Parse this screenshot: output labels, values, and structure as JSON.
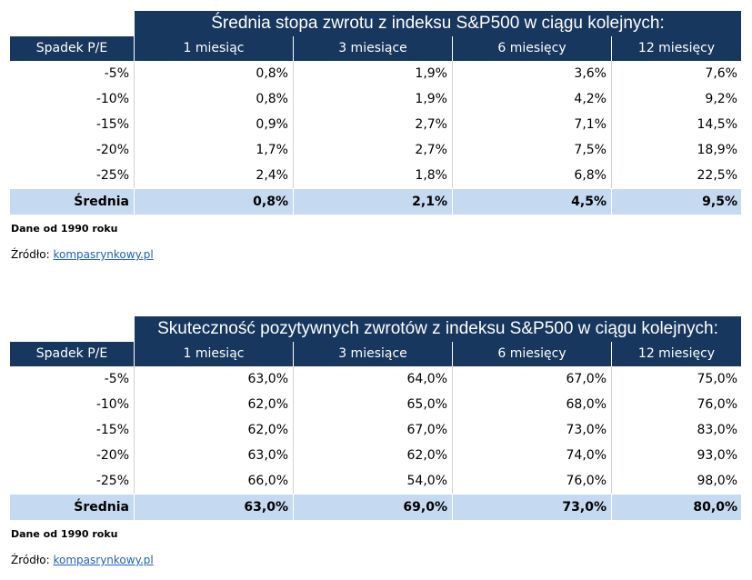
{
  "table1": {
    "title": "Średnia stopa zwrotu z indeksu S&P500 w ciągu kolejnych:",
    "headers": [
      "Spadek P/E",
      "1 miesiąc",
      "3 miesiące",
      "6 miesięcy",
      "12 miesięcy"
    ],
    "rows": [
      [
        "-5%",
        "0,8%",
        "1,9%",
        "3,6%",
        "7,6%"
      ],
      [
        "-10%",
        "0,8%",
        "1,9%",
        "4,2%",
        "9,2%"
      ],
      [
        "-15%",
        "0,9%",
        "2,7%",
        "7,1%",
        "14,5%"
      ],
      [
        "-20%",
        "1,7%",
        "2,7%",
        "7,5%",
        "18,9%"
      ],
      [
        "-25%",
        "2,4%",
        "1,8%",
        "6,8%",
        "22,5%"
      ]
    ],
    "average": [
      "Średnia",
      "0,8%",
      "2,1%",
      "4,5%",
      "9,5%"
    ],
    "note": "Dane od 1990 roku",
    "source_label": "Źródło:",
    "source_link": "kompasrynkowy.pl"
  },
  "table2": {
    "title": "Skuteczność pozytywnych zwrotów z indeksu S&P500 w ciągu kolejnych:",
    "headers": [
      "Spadek P/E",
      "1 miesiąc",
      "3 miesiące",
      "6 miesięcy",
      "12 miesięcy"
    ],
    "rows": [
      [
        "-5%",
        "63,0%",
        "64,0%",
        "67,0%",
        "75,0%"
      ],
      [
        "-10%",
        "62,0%",
        "65,0%",
        "68,0%",
        "76,0%"
      ],
      [
        "-15%",
        "62,0%",
        "67,0%",
        "73,0%",
        "83,0%"
      ],
      [
        "-20%",
        "63,0%",
        "62,0%",
        "74,0%",
        "93,0%"
      ],
      [
        "-25%",
        "66,0%",
        "54,0%",
        "76,0%",
        "98,0%"
      ]
    ],
    "average": [
      "Średnia",
      "63,0%",
      "69,0%",
      "73,0%",
      "80,0%"
    ],
    "note": "Dane od 1990 roku",
    "source_label": "Źródło:",
    "source_link": "kompasrynkowy.pl"
  }
}
